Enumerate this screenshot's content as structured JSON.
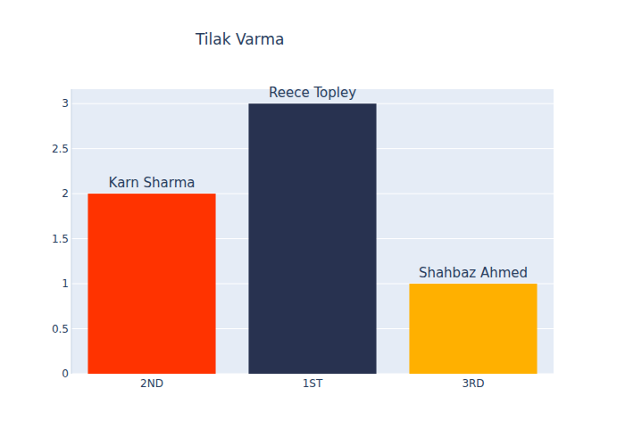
{
  "chart_data": {
    "type": "bar",
    "title": "Tilak Varma",
    "categories": [
      "2ND",
      "1ST",
      "3RD"
    ],
    "values": [
      2,
      3,
      1
    ],
    "annotations": [
      "Karn Sharma",
      "Reece Topley",
      "Shahbaz Ahmed"
    ],
    "colors": [
      "#ff3300",
      "#283250",
      "#ffb000"
    ],
    "ylim": [
      0,
      3.16
    ],
    "yticks": [
      0,
      0.5,
      1,
      1.5,
      2,
      2.5,
      3
    ],
    "grid": true
  }
}
